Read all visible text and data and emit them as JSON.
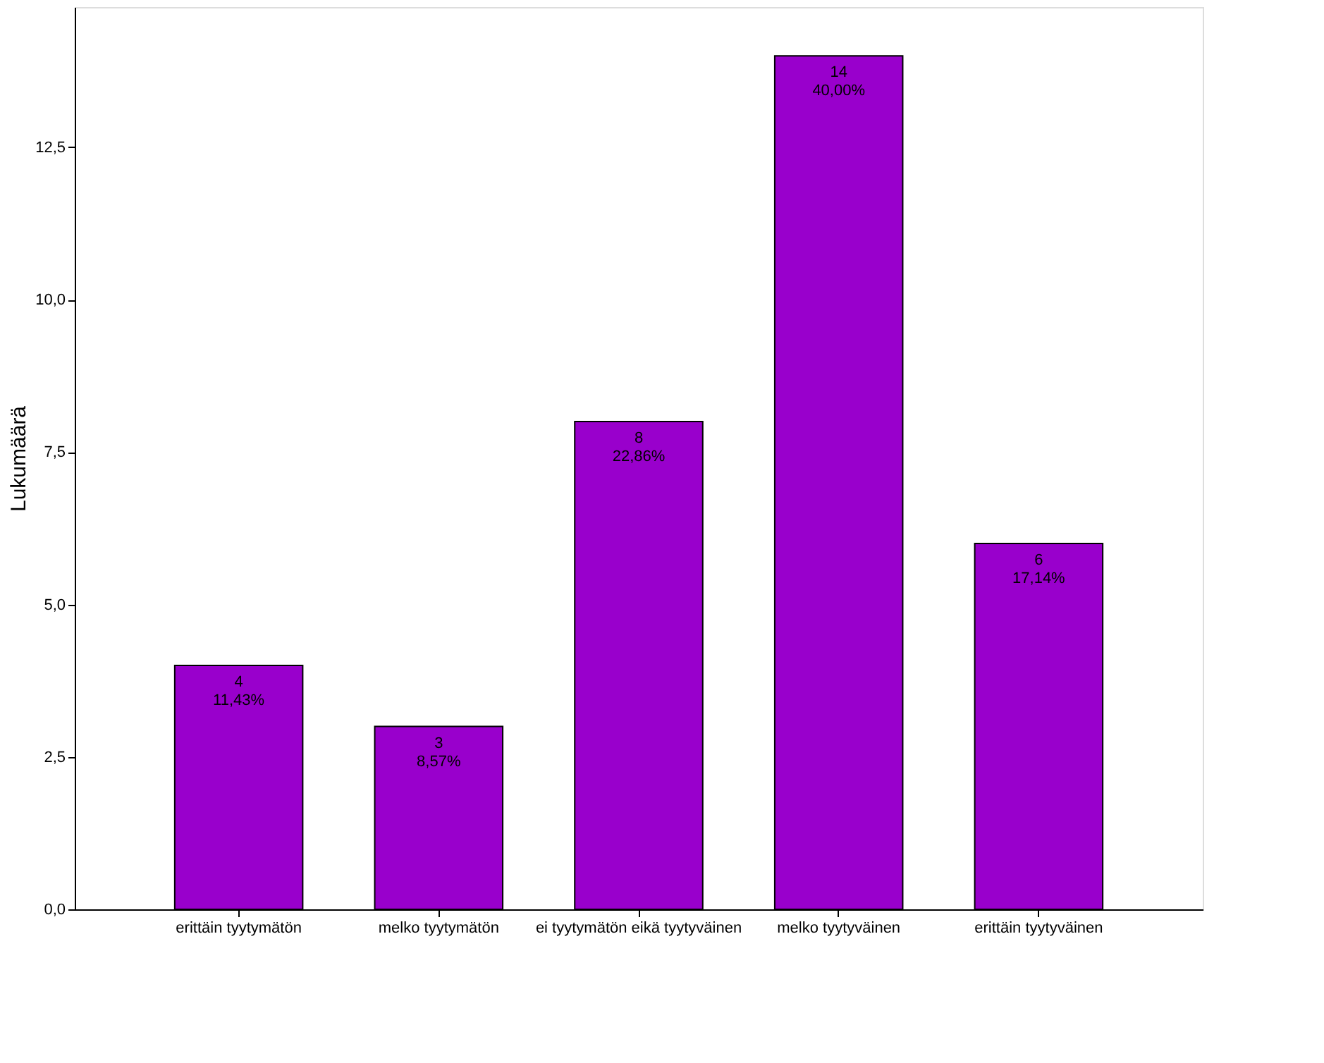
{
  "chart_data": {
    "type": "bar",
    "ylabel": "Lukumäärä",
    "categories": [
      "erittäin tyytymätön",
      "melko tyytymätön",
      "ei tyytymätön eikä tyytyväinen",
      "melko tyytyväinen",
      "erittäin tyytyväinen"
    ],
    "values": [
      4,
      3,
      8,
      14,
      6
    ],
    "value_labels": [
      "4\n11,43%",
      "3\n8,57%",
      "8\n22,86%",
      "14\n40,00%",
      "6\n17,14%"
    ],
    "color": "#9900cc",
    "ylim": [
      0,
      14.8
    ],
    "yticks": [
      {
        "value": 0,
        "label": "0,0"
      },
      {
        "value": 2.5,
        "label": "2,5"
      },
      {
        "value": 5,
        "label": "5,0"
      },
      {
        "value": 7.5,
        "label": "7,5"
      },
      {
        "value": 10,
        "label": "10,0"
      },
      {
        "value": 12.5,
        "label": "12,5"
      }
    ],
    "grid": false
  }
}
